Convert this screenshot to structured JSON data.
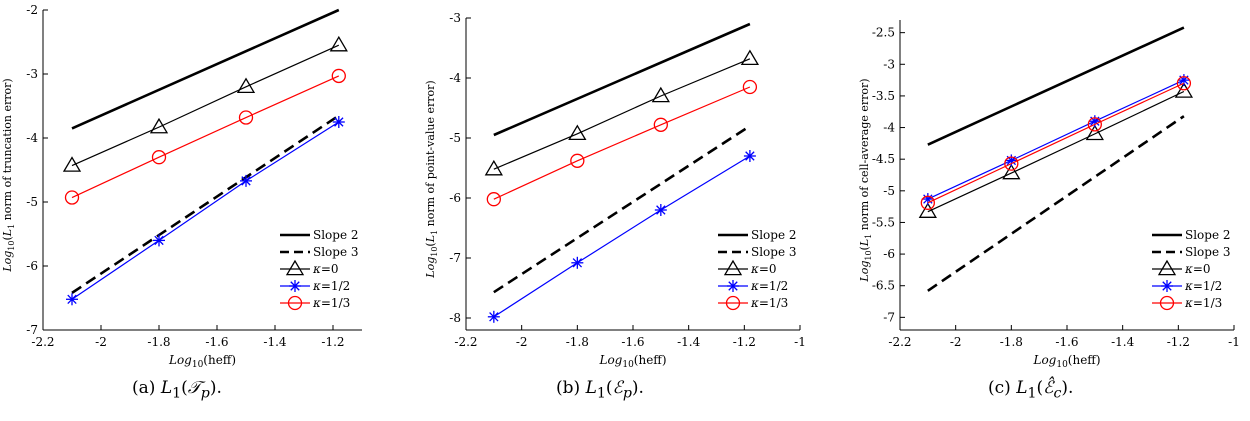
{
  "chart_data": [
    {
      "type": "line",
      "panel_caption": "(a) L1(Tp).",
      "xlabel": "Log10(heff)",
      "ylabel": "Log10(L1 norm of truncation error)",
      "xlim": [
        -2.2,
        -1.1
      ],
      "ylim": [
        -7,
        -2
      ],
      "xticks": [
        -2.2,
        -2,
        -1.8,
        -1.6,
        -1.4,
        -1.2
      ],
      "xtick_labels": [
        "-2.2",
        "-2",
        "-1.8",
        "-1.6",
        "-1.4",
        "-1.2"
      ],
      "yticks": [
        -7,
        -6,
        -5,
        -4,
        -3,
        -2
      ],
      "ytick_labels": [
        "-7",
        "-6",
        "-5",
        "-4",
        "-3",
        "-2"
      ],
      "legend_position": "bottom-right",
      "series": [
        {
          "name": "Slope 2",
          "style": "solid-thick",
          "color": "#000000",
          "marker": "none",
          "x": [
            -2.1,
            -1.18
          ],
          "y": [
            -3.85,
            -2.0
          ]
        },
        {
          "name": "Slope 3",
          "style": "dashed-thick",
          "color": "#000000",
          "marker": "none",
          "x": [
            -2.1,
            -1.18
          ],
          "y": [
            -6.42,
            -3.65
          ]
        },
        {
          "name": "κ=0",
          "style": "solid",
          "color": "#000000",
          "marker": "triangle",
          "x": [
            -2.1,
            -1.8,
            -1.5,
            -1.18
          ],
          "y": [
            -4.43,
            -3.83,
            -3.2,
            -2.55
          ]
        },
        {
          "name": "κ=1/2",
          "style": "solid",
          "color": "#0000ff",
          "marker": "asterisk",
          "x": [
            -2.1,
            -1.8,
            -1.5,
            -1.18
          ],
          "y": [
            -6.52,
            -5.6,
            -4.67,
            -3.75
          ]
        },
        {
          "name": "κ=1/3",
          "style": "solid",
          "color": "#ff0000",
          "marker": "circle",
          "x": [
            -2.1,
            -1.8,
            -1.5,
            -1.18
          ],
          "y": [
            -4.93,
            -4.3,
            -3.68,
            -3.03
          ]
        }
      ]
    },
    {
      "type": "line",
      "panel_caption": "(b) L1(Ep).",
      "xlabel": "Log10(heff)",
      "ylabel": "Log10(L1 norm of point-value error)",
      "xlim": [
        -2.2,
        -1.0
      ],
      "ylim": [
        -8.2,
        -3
      ],
      "xticks": [
        -2.2,
        -2,
        -1.8,
        -1.6,
        -1.4,
        -1.2,
        -1
      ],
      "xtick_labels": [
        "-2.2",
        "-2",
        "-1.8",
        "-1.6",
        "-1.4",
        "-1.2",
        "-1"
      ],
      "yticks": [
        -8,
        -7,
        -6,
        -5,
        -4,
        -3
      ],
      "ytick_labels": [
        "-8",
        "-7",
        "-6",
        "-5",
        "-4",
        "-3"
      ],
      "legend_position": "bottom-right",
      "series": [
        {
          "name": "Slope 2",
          "style": "solid-thick",
          "color": "#000000",
          "marker": "none",
          "x": [
            -2.1,
            -1.18
          ],
          "y": [
            -4.95,
            -3.1
          ]
        },
        {
          "name": "Slope 3",
          "style": "dashed-thick",
          "color": "#000000",
          "marker": "none",
          "x": [
            -2.1,
            -1.18
          ],
          "y": [
            -7.57,
            -4.8
          ]
        },
        {
          "name": "κ=0",
          "style": "solid",
          "color": "#000000",
          "marker": "triangle",
          "x": [
            -2.1,
            -1.8,
            -1.5,
            -1.18
          ],
          "y": [
            -5.52,
            -4.93,
            -4.3,
            -3.68
          ]
        },
        {
          "name": "κ=1/2",
          "style": "solid",
          "color": "#0000ff",
          "marker": "asterisk",
          "x": [
            -2.1,
            -1.8,
            -1.5,
            -1.18
          ],
          "y": [
            -7.98,
            -7.08,
            -6.2,
            -5.3
          ]
        },
        {
          "name": "κ=1/3",
          "style": "solid",
          "color": "#ff0000",
          "marker": "circle",
          "x": [
            -2.1,
            -1.8,
            -1.5,
            -1.18
          ],
          "y": [
            -6.02,
            -5.38,
            -4.78,
            -4.15
          ]
        }
      ]
    },
    {
      "type": "line",
      "panel_caption": "(c) L1(Êc).",
      "xlabel": "Log10(heff)",
      "ylabel": "Log10(L1 norm of cell-average error)",
      "xlim": [
        -2.2,
        -1.0
      ],
      "ylim": [
        -7.2,
        -2.3
      ],
      "xticks": [
        -2.2,
        -2,
        -1.8,
        -1.6,
        -1.4,
        -1.2,
        -1
      ],
      "xtick_labels": [
        "-2.2",
        "-2",
        "-1.8",
        "-1.6",
        "-1.4",
        "-1.2",
        "-1"
      ],
      "yticks": [
        -7,
        -6.5,
        -6,
        -5.5,
        -5,
        -4.5,
        -4,
        -3.5,
        -3,
        -2.5
      ],
      "ytick_labels": [
        "-7",
        "-6.5",
        "-6",
        "-5.5",
        "-5",
        "-4.5",
        "-4",
        "-3.5",
        "-3",
        "-2.5"
      ],
      "legend_position": "bottom-right",
      "series": [
        {
          "name": "Slope 2",
          "style": "solid-thick",
          "color": "#000000",
          "marker": "none",
          "x": [
            -2.1,
            -1.18
          ],
          "y": [
            -4.27,
            -2.42
          ]
        },
        {
          "name": "Slope 3",
          "style": "dashed-thick",
          "color": "#000000",
          "marker": "none",
          "x": [
            -2.1,
            -1.18
          ],
          "y": [
            -6.58,
            -3.82
          ]
        },
        {
          "name": "κ=0",
          "style": "solid",
          "color": "#000000",
          "marker": "triangle",
          "x": [
            -2.1,
            -1.8,
            -1.5,
            -1.18
          ],
          "y": [
            -5.33,
            -4.72,
            -4.1,
            -3.43
          ]
        },
        {
          "name": "κ=1/2",
          "style": "solid",
          "color": "#0000ff",
          "marker": "asterisk",
          "x": [
            -2.1,
            -1.8,
            -1.5,
            -1.18
          ],
          "y": [
            -5.13,
            -4.52,
            -3.9,
            -3.25
          ]
        },
        {
          "name": "κ=1/3",
          "style": "solid",
          "color": "#ff0000",
          "marker": "circle",
          "x": [
            -2.1,
            -1.8,
            -1.5,
            -1.18
          ],
          "y": [
            -5.19,
            -4.57,
            -3.95,
            -3.3
          ]
        }
      ]
    }
  ]
}
